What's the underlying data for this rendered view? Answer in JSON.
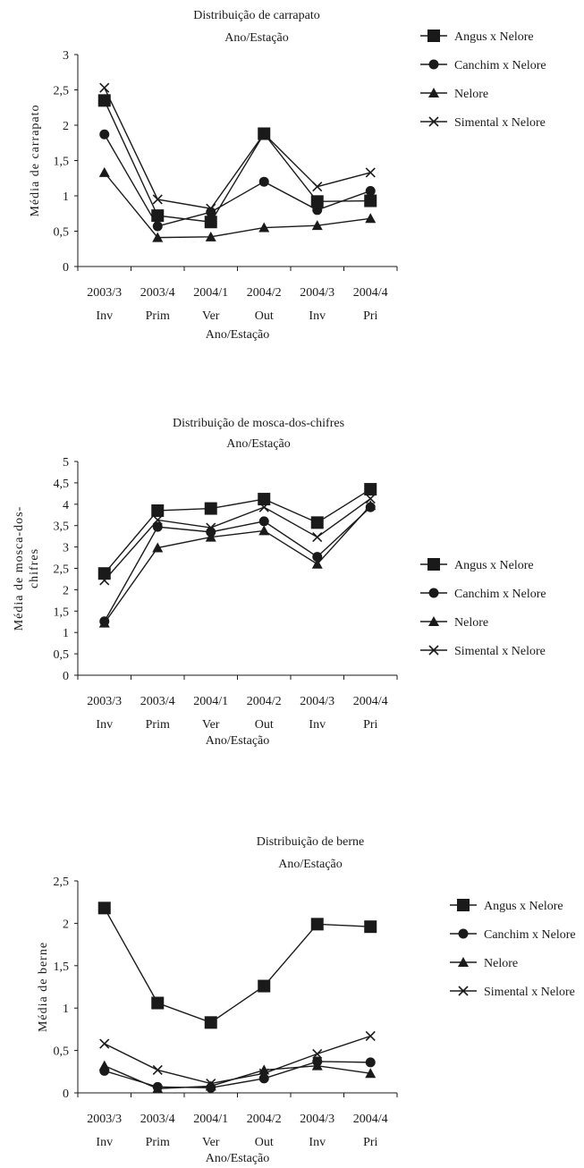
{
  "chart_data": [
    {
      "type": "line",
      "title": "Distribuição de carrapato",
      "subtitle": "Ano/Estação",
      "xlabel": "Ano/Estação",
      "ylabel": "Média de carrapato",
      "categories": [
        {
          "year": "2003/3",
          "season": "Inv"
        },
        {
          "year": "2003/4",
          "season": "Prim"
        },
        {
          "year": "2004/1",
          "season": "Ver"
        },
        {
          "year": "2004/2",
          "season": "Out"
        },
        {
          "year": "2004/3",
          "season": "Inv"
        },
        {
          "year": "2004/4",
          "season": "Pri"
        }
      ],
      "ylim": [
        0,
        3
      ],
      "yticks": [
        "0",
        "0,5",
        "1",
        "1,5",
        "2",
        "2,5",
        "3"
      ],
      "legend_position": "right",
      "series": [
        {
          "name": "Angus x Nelore",
          "marker": "square",
          "values": [
            2.35,
            0.72,
            0.63,
            1.88,
            0.92,
            0.93
          ]
        },
        {
          "name": "Canchim x Nelore",
          "marker": "circle",
          "values": [
            1.87,
            0.57,
            0.77,
            1.2,
            0.8,
            1.07
          ]
        },
        {
          "name": "Nelore",
          "marker": "triangle",
          "values": [
            1.33,
            0.41,
            0.42,
            0.55,
            0.58,
            0.68
          ]
        },
        {
          "name": "Simental x Nelore",
          "marker": "x",
          "values": [
            2.53,
            0.95,
            0.82,
            1.88,
            1.13,
            1.33
          ]
        }
      ]
    },
    {
      "type": "line",
      "title": "Distribuição de mosca-dos-chifres",
      "subtitle": "Ano/Estação",
      "xlabel": "Ano/Estação",
      "ylabel": "Média de mosca-dos-chifres",
      "categories": [
        {
          "year": "2003/3",
          "season": "Inv"
        },
        {
          "year": "2003/4",
          "season": "Prim"
        },
        {
          "year": "2004/1",
          "season": "Ver"
        },
        {
          "year": "2004/2",
          "season": "Out"
        },
        {
          "year": "2004/3",
          "season": "Inv"
        },
        {
          "year": "2004/4",
          "season": "Pri"
        }
      ],
      "ylim": [
        0,
        5
      ],
      "yticks": [
        "0",
        "0,5",
        "1",
        "1,5",
        "2",
        "2,5",
        "3",
        "3,5",
        "4",
        "4,5",
        "5"
      ],
      "legend_position": "right",
      "series": [
        {
          "name": "Angus x Nelore",
          "marker": "square",
          "values": [
            2.38,
            3.85,
            3.9,
            4.12,
            3.57,
            4.35
          ]
        },
        {
          "name": "Canchim x Nelore",
          "marker": "circle",
          "values": [
            1.26,
            3.47,
            3.35,
            3.6,
            2.77,
            3.93
          ]
        },
        {
          "name": "Nelore",
          "marker": "triangle",
          "values": [
            1.22,
            2.98,
            3.23,
            3.38,
            2.6,
            3.97
          ]
        },
        {
          "name": "Simental x Nelore",
          "marker": "x",
          "values": [
            2.22,
            3.63,
            3.45,
            3.93,
            3.23,
            4.13
          ]
        }
      ]
    },
    {
      "type": "line",
      "title": "Distribuição de berne",
      "subtitle": "Ano/Estação",
      "xlabel": "Ano/Estação",
      "ylabel": "Média de berne",
      "categories": [
        {
          "year": "2003/3",
          "season": "Inv"
        },
        {
          "year": "2003/4",
          "season": "Prim"
        },
        {
          "year": "2004/1",
          "season": "Ver"
        },
        {
          "year": "2004/2",
          "season": "Out"
        },
        {
          "year": "2004/3",
          "season": "Inv"
        },
        {
          "year": "2004/4",
          "season": "Pri"
        }
      ],
      "ylim": [
        0,
        2.5
      ],
      "yticks": [
        "0",
        "0,5",
        "1",
        "1,5",
        "2",
        "2,5"
      ],
      "legend_position": "right",
      "series": [
        {
          "name": "Angus x Nelore",
          "marker": "square",
          "values": [
            2.18,
            1.06,
            0.83,
            1.26,
            1.99,
            1.96
          ]
        },
        {
          "name": "Canchim x Nelore",
          "marker": "circle",
          "values": [
            0.26,
            0.07,
            0.06,
            0.17,
            0.37,
            0.36
          ]
        },
        {
          "name": "Nelore",
          "marker": "triangle",
          "values": [
            0.32,
            0.05,
            0.08,
            0.27,
            0.32,
            0.23
          ]
        },
        {
          "name": "Simental x Nelore",
          "marker": "x",
          "values": [
            0.58,
            0.27,
            0.11,
            0.23,
            0.46,
            0.67
          ]
        }
      ]
    }
  ]
}
